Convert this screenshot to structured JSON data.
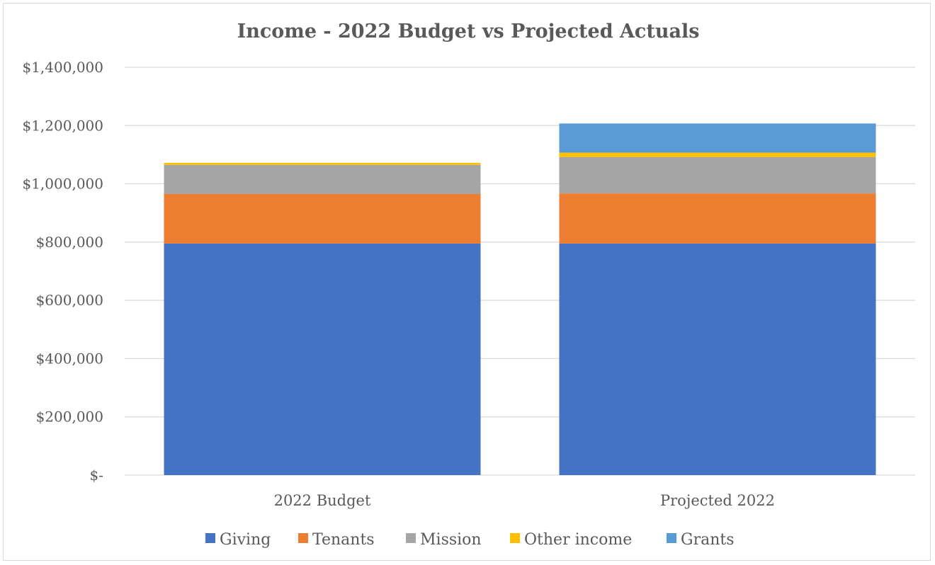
{
  "chart_data": {
    "type": "bar",
    "stacked": true,
    "title": "Income - 2022 Budget vs Projected Actuals",
    "xlabel": "",
    "ylabel": "",
    "categories": [
      "2022 Budget",
      "Projected 2022"
    ],
    "ylim": [
      0,
      1400000
    ],
    "yticks": [
      0,
      200000,
      400000,
      600000,
      800000,
      1000000,
      1200000,
      1400000
    ],
    "ytick_labels": [
      "$-",
      "$200,000",
      "$400,000",
      "$600,000",
      "$800,000",
      "$1,000,000",
      "$1,200,000",
      "$1,400,000"
    ],
    "grid": true,
    "legend_position": "bottom",
    "series": [
      {
        "name": "Giving",
        "color": "#4472C4",
        "values": [
          795000,
          795000
        ]
      },
      {
        "name": "Tenants",
        "color": "#ED7D31",
        "values": [
          170000,
          172000
        ]
      },
      {
        "name": "Mission",
        "color": "#A5A5A5",
        "values": [
          100000,
          125000
        ]
      },
      {
        "name": "Other income",
        "color": "#FFC000",
        "values": [
          7000,
          15000
        ]
      },
      {
        "name": "Grants",
        "color": "#5B9BD5",
        "values": [
          0,
          100000
        ]
      }
    ]
  }
}
